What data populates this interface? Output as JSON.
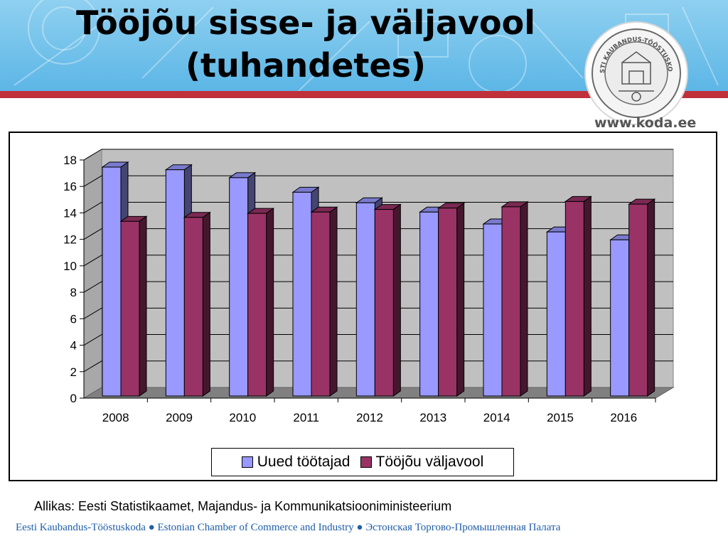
{
  "header": {
    "title_line1": "Tööjõu sisse- ja väljavool",
    "title_line2": "(tuhandetes)",
    "seal_text": "EESTI KAUBANDUS-TÖÖSTUSKODA",
    "website": "www.koda.ee"
  },
  "colors": {
    "series1": "#9999ff",
    "series2": "#993366",
    "wall": "#c0c0c0",
    "floor": "#808080",
    "accent": "#c0303a"
  },
  "chart_data": {
    "type": "bar",
    "categories": [
      "2008",
      "2009",
      "2010",
      "2011",
      "2012",
      "2013",
      "2014",
      "2015",
      "2016"
    ],
    "series": [
      {
        "name": "Uued töötajad",
        "values": [
          17.3,
          17.1,
          16.5,
          15.4,
          14.6,
          13.9,
          13.0,
          12.4,
          11.8
        ]
      },
      {
        "name": "Tööjõu väljavool",
        "values": [
          13.2,
          13.5,
          13.8,
          13.9,
          14.1,
          14.2,
          14.3,
          14.7,
          14.5
        ]
      }
    ],
    "yticks": [
      "0",
      "2",
      "4",
      "6",
      "8",
      "10",
      "12",
      "14",
      "16",
      "18"
    ],
    "ylim": [
      0,
      18
    ],
    "grid": true,
    "legend": "bottom",
    "style": "3d-clustered-column"
  },
  "source": "Allikas: Eesti Statistikaamet, Majandus- ja Kommunikatsiooniministeerium",
  "footer": "Eesti Kaubandus-Tööstuskoda ● Estonian Chamber of Commerce and Industry ● Эстонская Торгово-Промышленная Палата"
}
